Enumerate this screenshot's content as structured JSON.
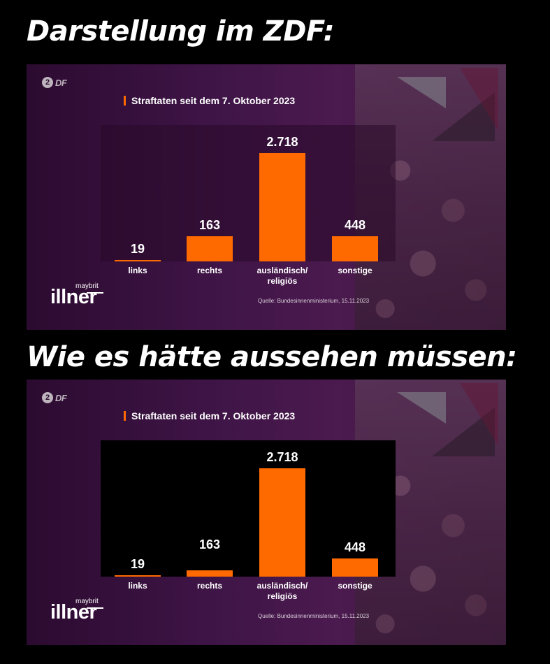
{
  "headings": {
    "top": "Darstellung im ZDF:",
    "bottom": "Wie es hätte aussehen müssen:"
  },
  "panel": {
    "zdf_circle_letter": "2",
    "zdf_text": "DF",
    "title": "Straftaten seit dem 7. Oktober 2023",
    "source": "Quelle: Bundesinnenministerium, 15.11.2023",
    "show_small": "maybrit",
    "show_big": "illner"
  },
  "colors": {
    "bar": "#ff6a00",
    "accent": "#ff6a00"
  },
  "chart_data": [
    {
      "type": "bar",
      "variant": "ZDF broadcast (distorted scale)",
      "title": "Straftaten seit dem 7. Oktober 2023",
      "categories": [
        "links",
        "rechts",
        "ausländisch/\nreligiös",
        "sonstige"
      ],
      "values": [
        19,
        163,
        2718,
        448
      ],
      "value_labels": [
        "19",
        "163",
        "2.718",
        "448"
      ],
      "ylim": [
        0,
        2718
      ]
    },
    {
      "type": "bar",
      "variant": "Proportional scale",
      "title": "Straftaten seit dem 7. Oktober 2023",
      "categories": [
        "links",
        "rechts",
        "ausländisch/\nreligiös",
        "sonstige"
      ],
      "values": [
        19,
        163,
        2718,
        448
      ],
      "value_labels": [
        "19",
        "163",
        "2.718",
        "448"
      ],
      "ylim": [
        0,
        2718
      ]
    }
  ]
}
